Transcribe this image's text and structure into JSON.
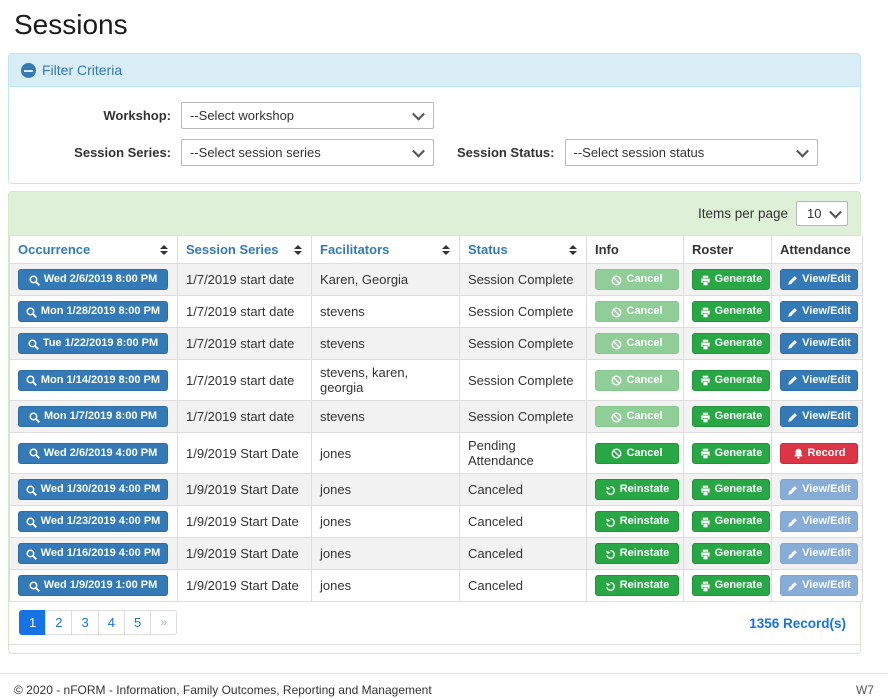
{
  "page": {
    "title": "Sessions"
  },
  "filter": {
    "header": "Filter Criteria",
    "fields": [
      {
        "label": "Workshop:",
        "value": "--Select workshop"
      },
      {
        "label": "Session Series:",
        "value": "--Select session series"
      },
      {
        "label": "Session Status:",
        "value": "--Select session status"
      }
    ]
  },
  "table": {
    "items_per_page_label": "Items per page",
    "items_per_page_value": "10",
    "columns": [
      {
        "label": "Occurrence",
        "sortable": true
      },
      {
        "label": "Session Series",
        "sortable": true
      },
      {
        "label": "Facilitators",
        "sortable": true
      },
      {
        "label": "Status",
        "sortable": true
      },
      {
        "label": "Info",
        "sortable": false
      },
      {
        "label": "Roster",
        "sortable": false
      },
      {
        "label": "Attendance",
        "sortable": false
      }
    ],
    "rows": [
      {
        "occurrence": "Wed 2/6/2019 8:00 PM",
        "session_series": "1/7/2019 start date",
        "facilitators": "Karen, Georgia",
        "status": "Session Complete",
        "info": {
          "label": "Cancel",
          "action": "cancel",
          "enabled": false
        },
        "roster": {
          "label": "Generate",
          "action": "generate",
          "enabled": true
        },
        "attendance": {
          "label": "View/Edit",
          "action": "view-edit",
          "enabled": true
        }
      },
      {
        "occurrence": "Mon 1/28/2019 8:00 PM",
        "session_series": "1/7/2019 start date",
        "facilitators": "stevens",
        "status": "Session Complete",
        "info": {
          "label": "Cancel",
          "action": "cancel",
          "enabled": false
        },
        "roster": {
          "label": "Generate",
          "action": "generate",
          "enabled": true
        },
        "attendance": {
          "label": "View/Edit",
          "action": "view-edit",
          "enabled": true
        }
      },
      {
        "occurrence": "Tue 1/22/2019 8:00 PM",
        "session_series": "1/7/2019 start date",
        "facilitators": "stevens",
        "status": "Session Complete",
        "info": {
          "label": "Cancel",
          "action": "cancel",
          "enabled": false
        },
        "roster": {
          "label": "Generate",
          "action": "generate",
          "enabled": true
        },
        "attendance": {
          "label": "View/Edit",
          "action": "view-edit",
          "enabled": true
        }
      },
      {
        "occurrence": "Mon 1/14/2019 8:00 PM",
        "session_series": "1/7/2019 start date",
        "facilitators": "stevens, karen, georgia",
        "status": "Session Complete",
        "info": {
          "label": "Cancel",
          "action": "cancel",
          "enabled": false
        },
        "roster": {
          "label": "Generate",
          "action": "generate",
          "enabled": true
        },
        "attendance": {
          "label": "View/Edit",
          "action": "view-edit",
          "enabled": true
        }
      },
      {
        "occurrence": "Mon 1/7/2019 8:00 PM",
        "session_series": "1/7/2019 start date",
        "facilitators": "stevens",
        "status": "Session Complete",
        "info": {
          "label": "Cancel",
          "action": "cancel",
          "enabled": false
        },
        "roster": {
          "label": "Generate",
          "action": "generate",
          "enabled": true
        },
        "attendance": {
          "label": "View/Edit",
          "action": "view-edit",
          "enabled": true
        }
      },
      {
        "occurrence": "Wed 2/6/2019 4:00 PM",
        "session_series": "1/9/2019 Start Date",
        "facilitators": "jones",
        "status": "Pending Attendance",
        "info": {
          "label": "Cancel",
          "action": "cancel",
          "enabled": true
        },
        "roster": {
          "label": "Generate",
          "action": "generate",
          "enabled": true
        },
        "attendance": {
          "label": "Record",
          "action": "record",
          "enabled": true
        }
      },
      {
        "occurrence": "Wed 1/30/2019 4:00 PM",
        "session_series": "1/9/2019 Start Date",
        "facilitators": "jones",
        "status": "Canceled",
        "info": {
          "label": "Reinstate",
          "action": "reinstate",
          "enabled": true
        },
        "roster": {
          "label": "Generate",
          "action": "generate",
          "enabled": true
        },
        "attendance": {
          "label": "View/Edit",
          "action": "view-edit",
          "enabled": false
        }
      },
      {
        "occurrence": "Wed 1/23/2019 4:00 PM",
        "session_series": "1/9/2019 Start Date",
        "facilitators": "jones",
        "status": "Canceled",
        "info": {
          "label": "Reinstate",
          "action": "reinstate",
          "enabled": true
        },
        "roster": {
          "label": "Generate",
          "action": "generate",
          "enabled": true
        },
        "attendance": {
          "label": "View/Edit",
          "action": "view-edit",
          "enabled": false
        }
      },
      {
        "occurrence": "Wed 1/16/2019 4:00 PM",
        "session_series": "1/9/2019 Start Date",
        "facilitators": "jones",
        "status": "Canceled",
        "info": {
          "label": "Reinstate",
          "action": "reinstate",
          "enabled": true
        },
        "roster": {
          "label": "Generate",
          "action": "generate",
          "enabled": true
        },
        "attendance": {
          "label": "View/Edit",
          "action": "view-edit",
          "enabled": false
        }
      },
      {
        "occurrence": "Wed 1/9/2019 1:00 PM",
        "session_series": "1/9/2019 Start Date",
        "facilitators": "jones",
        "status": "Canceled",
        "info": {
          "label": "Reinstate",
          "action": "reinstate",
          "enabled": true
        },
        "roster": {
          "label": "Generate",
          "action": "generate",
          "enabled": true
        },
        "attendance": {
          "label": "View/Edit",
          "action": "view-edit",
          "enabled": false
        }
      }
    ]
  },
  "pagination": {
    "pages": [
      "1",
      "2",
      "3",
      "4",
      "5",
      "»"
    ],
    "active": "1",
    "record_count": "1356 Record(s)"
  },
  "footer": {
    "copyright": "© 2020 - nFORM - Information, Family Outcomes, Reporting and Management",
    "version": "W7"
  },
  "colors": {
    "accent_blue": "#337ab7",
    "action_green": "#28a745",
    "danger_red": "#dc3545",
    "link_blue": "#1673e6",
    "panel_green_bg": "#dff0d8",
    "panel_green_border": "#d6e9c6",
    "filter_blue_bg": "#d9edf7",
    "filter_blue_border": "#bce8f1"
  }
}
